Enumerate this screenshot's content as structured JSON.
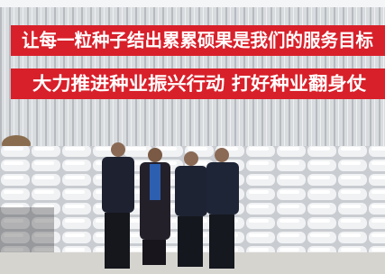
{
  "banners": [
    {
      "text": "让每一粒种子结出累累硕果是我们的服务目标"
    },
    {
      "text": "大力推进种业振兴行动  打好种业翻身仗"
    }
  ]
}
